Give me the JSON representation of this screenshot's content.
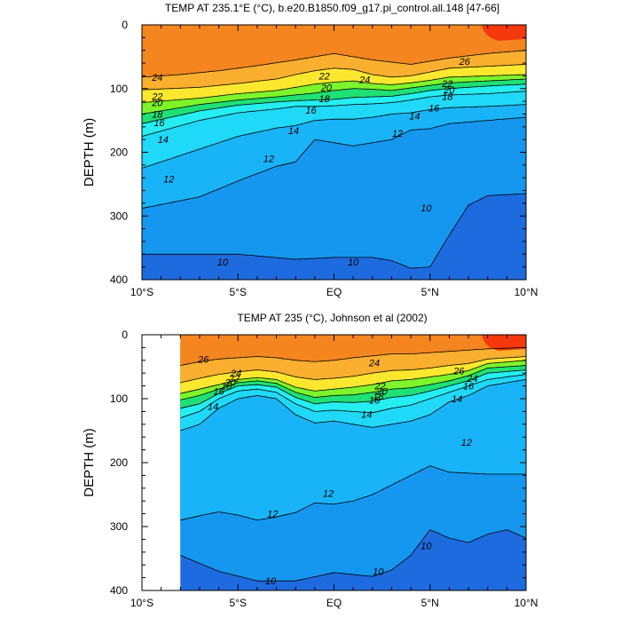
{
  "chart_data": [
    {
      "type": "contour",
      "title": "TEMP AT 235.1°E (°C), b.e20.B1850.f09_g17.pi_control.all.148 [47-66]",
      "ylabel": "DEPTH (m)",
      "xlabel": "",
      "x_ticks": [
        "10°S",
        "5°S",
        "EQ",
        "5°N",
        "10°N"
      ],
      "y_ticks": [
        "0",
        "100",
        "200",
        "300",
        "400"
      ],
      "xlim": [
        -10,
        10
      ],
      "ylim": [
        400,
        0
      ],
      "data_x_start": -10,
      "isotherms": [
        {
          "level": 10,
          "x": [
            -10,
            -5,
            -2,
            0,
            2,
            3,
            4,
            5,
            6,
            7,
            8,
            10
          ],
          "depth": [
            360,
            360,
            368,
            365,
            365,
            370,
            382,
            380,
            330,
            283,
            268,
            265
          ]
        },
        {
          "level": 12,
          "x": [
            -10,
            -7,
            -5,
            -3,
            -2,
            -1,
            0,
            1,
            2,
            3,
            4,
            5,
            6,
            8,
            10
          ],
          "depth": [
            288,
            270,
            245,
            222,
            215,
            180,
            185,
            190,
            185,
            180,
            165,
            163,
            155,
            150,
            145
          ]
        },
        {
          "level": 14,
          "x": [
            -10,
            -7,
            -5,
            -3,
            -2,
            -1,
            0,
            1,
            2,
            3,
            4,
            5,
            6,
            8,
            10
          ],
          "depth": [
            225,
            195,
            175,
            162,
            158,
            150,
            148,
            148,
            145,
            140,
            138,
            133,
            130,
            128,
            125
          ]
        },
        {
          "level": 16,
          "x": [
            -10,
            -7,
            -5,
            -3,
            -2,
            -1,
            0,
            1,
            2,
            3,
            4,
            5,
            6,
            8,
            10
          ],
          "depth": [
            175,
            150,
            138,
            132,
            128,
            128,
            127,
            125,
            124,
            122,
            118,
            113,
            110,
            108,
            104
          ]
        },
        {
          "level": 18,
          "x": [
            -10,
            -7,
            -5,
            -3,
            -2,
            -1,
            0,
            1,
            2,
            3,
            4,
            5,
            6,
            8,
            10
          ],
          "depth": [
            155,
            135,
            126,
            121,
            119,
            118,
            117,
            114,
            113,
            112,
            108,
            103,
            100,
            96,
            93
          ]
        },
        {
          "level": 20,
          "x": [
            -10,
            -7,
            -5,
            -3,
            -2,
            -1,
            0,
            1,
            2,
            3,
            4,
            5,
            6,
            8,
            10
          ],
          "depth": [
            140,
            125,
            118,
            113,
            110,
            107,
            103,
            100,
            101,
            103,
            99,
            95,
            91,
            88,
            85
          ]
        },
        {
          "level": 22,
          "x": [
            -10,
            -7,
            -5,
            -3,
            -2,
            -1,
            0,
            1,
            2,
            3,
            4,
            5,
            6,
            8,
            10
          ],
          "depth": [
            122,
            115,
            108,
            103,
            98,
            93,
            90,
            88,
            92,
            94,
            91,
            87,
            82,
            80,
            78
          ]
        },
        {
          "level": 24,
          "x": [
            -10,
            -7,
            -5,
            -3,
            -2,
            -1,
            0,
            1,
            2,
            3,
            4,
            5,
            6,
            8,
            10
          ],
          "depth": [
            102,
            98,
            92,
            85,
            78,
            72,
            68,
            70,
            78,
            82,
            80,
            74,
            68,
            65,
            62
          ]
        },
        {
          "level": 26,
          "x": [
            -10,
            -8,
            -6,
            -4,
            -2,
            0,
            2,
            4,
            6,
            8,
            10
          ],
          "depth": [
            82,
            78,
            72,
            64,
            55,
            45,
            55,
            62,
            52,
            45,
            40
          ]
        }
      ],
      "contour_labels": [
        {
          "text": "24",
          "x": -9.2,
          "depth": 82
        },
        {
          "text": "22",
          "x": -9.2,
          "depth": 112
        },
        {
          "text": "20",
          "x": -9.2,
          "depth": 122
        },
        {
          "text": "18",
          "x": -9.2,
          "depth": 140
        },
        {
          "text": "16",
          "x": -9.1,
          "depth": 153
        },
        {
          "text": "14",
          "x": -8.9,
          "depth": 180
        },
        {
          "text": "12",
          "x": -8.6,
          "depth": 242
        },
        {
          "text": "22",
          "x": -0.5,
          "depth": 80
        },
        {
          "text": "20",
          "x": -0.4,
          "depth": 98
        },
        {
          "text": "18",
          "x": -0.5,
          "depth": 116
        },
        {
          "text": "16",
          "x": -1.2,
          "depth": 134
        },
        {
          "text": "14",
          "x": -2.1,
          "depth": 166
        },
        {
          "text": "12",
          "x": -3.4,
          "depth": 210
        },
        {
          "text": "24",
          "x": 1.6,
          "depth": 86
        },
        {
          "text": "26",
          "x": 6.8,
          "depth": 57
        },
        {
          "text": "22",
          "x": 5.9,
          "depth": 92
        },
        {
          "text": "20",
          "x": 6.0,
          "depth": 102
        },
        {
          "text": "18",
          "x": 5.9,
          "depth": 112
        },
        {
          "text": "16",
          "x": 5.2,
          "depth": 130
        },
        {
          "text": "14",
          "x": 4.2,
          "depth": 143
        },
        {
          "text": "12",
          "x": 3.3,
          "depth": 170
        },
        {
          "text": "10",
          "x": 4.8,
          "depth": 287
        },
        {
          "text": "10",
          "x": -5.8,
          "depth": 372
        },
        {
          "text": "10",
          "x": 1.0,
          "depth": 372
        }
      ]
    },
    {
      "type": "contour",
      "title": "TEMP AT 235 (°C), Johnson et al (2002)",
      "ylabel": "DEPTH (m)",
      "xlabel": "",
      "x_ticks": [
        "10°S",
        "5°S",
        "EQ",
        "5°N",
        "10°N"
      ],
      "y_ticks": [
        "0",
        "100",
        "200",
        "300",
        "400"
      ],
      "xlim": [
        -10,
        10
      ],
      "ylim": [
        400,
        0
      ],
      "data_x_start": -8,
      "isotherms": [
        {
          "level": 10,
          "x": [
            -8,
            -6,
            -4,
            -2,
            0,
            2,
            3,
            4,
            5,
            6,
            7,
            8,
            9,
            10
          ],
          "depth": [
            345,
            370,
            385,
            385,
            372,
            378,
            368,
            345,
            305,
            318,
            325,
            312,
            305,
            318
          ]
        },
        {
          "level": 12,
          "x": [
            -8,
            -7,
            -6,
            -5,
            -4,
            -3,
            -2,
            -1,
            0,
            1,
            2,
            3,
            4,
            5,
            6,
            8,
            10
          ],
          "depth": [
            290,
            283,
            277,
            282,
            290,
            285,
            278,
            263,
            265,
            260,
            250,
            235,
            220,
            205,
            215,
            218,
            218
          ]
        },
        {
          "level": 14,
          "x": [
            -8,
            -7,
            -6,
            -5,
            -4,
            -3,
            -2,
            -1,
            0,
            1,
            2,
            3,
            4,
            5,
            6,
            7,
            8,
            10
          ],
          "depth": [
            150,
            140,
            115,
            100,
            95,
            100,
            125,
            138,
            135,
            140,
            145,
            140,
            135,
            125,
            105,
            95,
            80,
            70
          ]
        },
        {
          "level": 16,
          "x": [
            -8,
            -7,
            -6,
            -5,
            -4,
            -3,
            -2,
            -1,
            0,
            1,
            2,
            3,
            4,
            5,
            6,
            7,
            8,
            10
          ],
          "depth": [
            130,
            120,
            100,
            88,
            85,
            90,
            108,
            120,
            118,
            120,
            122,
            115,
            110,
            100,
            90,
            80,
            70,
            62
          ]
        },
        {
          "level": 18,
          "x": [
            -8,
            -7,
            -6,
            -5,
            -4,
            -3,
            -2,
            -1,
            0,
            1,
            2,
            3,
            4,
            5,
            6,
            7,
            8,
            10
          ],
          "depth": [
            115,
            108,
            92,
            80,
            78,
            82,
            98,
            108,
            105,
            106,
            104,
            98,
            95,
            88,
            80,
            72,
            60,
            55
          ]
        },
        {
          "level": 20,
          "x": [
            -8,
            -7,
            -6,
            -5,
            -4,
            -3,
            -2,
            -1,
            0,
            1,
            2,
            3,
            4,
            5,
            6,
            7,
            8,
            10
          ],
          "depth": [
            102,
            95,
            85,
            75,
            72,
            76,
            90,
            98,
            95,
            94,
            90,
            85,
            83,
            78,
            72,
            64,
            52,
            48
          ]
        },
        {
          "level": 22,
          "x": [
            -8,
            -7,
            -6,
            -5,
            -4,
            -3,
            -2,
            -1,
            0,
            1,
            2,
            3,
            4,
            5,
            6,
            7,
            8,
            10
          ],
          "depth": [
            92,
            85,
            78,
            70,
            67,
            70,
            82,
            88,
            85,
            82,
            78,
            72,
            70,
            66,
            62,
            56,
            45,
            40
          ]
        },
        {
          "level": 24,
          "x": [
            -8,
            -7,
            -6,
            -5,
            -4,
            -3,
            -2,
            -1,
            0,
            1,
            2,
            3,
            4,
            5,
            6,
            7,
            8,
            10
          ],
          "depth": [
            75,
            68,
            62,
            58,
            55,
            58,
            66,
            70,
            68,
            65,
            60,
            56,
            55,
            52,
            48,
            45,
            38,
            34
          ]
        },
        {
          "level": 26,
          "x": [
            -8,
            -7,
            -6,
            -5,
            -4,
            -3,
            -2,
            -1,
            0,
            1,
            2,
            3,
            4,
            5,
            6,
            7,
            8,
            10
          ],
          "depth": [
            48,
            42,
            38,
            36,
            34,
            36,
            40,
            42,
            40,
            36,
            33,
            30,
            30,
            28,
            26,
            24,
            22,
            20
          ]
        }
      ],
      "contour_labels": [
        {
          "text": "26",
          "x": -6.8,
          "depth": 38
        },
        {
          "text": "24",
          "x": -5.1,
          "depth": 60
        },
        {
          "text": "22",
          "x": -5.2,
          "depth": 68
        },
        {
          "text": "20",
          "x": -5.4,
          "depth": 74
        },
        {
          "text": "18",
          "x": -5.6,
          "depth": 80
        },
        {
          "text": "16",
          "x": -6.0,
          "depth": 88
        },
        {
          "text": "14",
          "x": -6.3,
          "depth": 112
        },
        {
          "text": "24",
          "x": 2.1,
          "depth": 44
        },
        {
          "text": "22",
          "x": 2.4,
          "depth": 80
        },
        {
          "text": "20",
          "x": 2.5,
          "depth": 88
        },
        {
          "text": "18",
          "x": 2.3,
          "depth": 96
        },
        {
          "text": "16",
          "x": 2.1,
          "depth": 102
        },
        {
          "text": "14",
          "x": 1.7,
          "depth": 124
        },
        {
          "text": "26",
          "x": 6.5,
          "depth": 56
        },
        {
          "text": "24",
          "x": 7.2,
          "depth": 68
        },
        {
          "text": "16",
          "x": 7.0,
          "depth": 80
        },
        {
          "text": "14",
          "x": 6.4,
          "depth": 100
        },
        {
          "text": "12",
          "x": 6.9,
          "depth": 168
        },
        {
          "text": "12",
          "x": -0.3,
          "depth": 248
        },
        {
          "text": "12",
          "x": -3.2,
          "depth": 280
        },
        {
          "text": "10",
          "x": 4.8,
          "depth": 330
        },
        {
          "text": "10",
          "x": 2.3,
          "depth": 370
        },
        {
          "text": "10",
          "x": -3.3,
          "depth": 385
        }
      ]
    }
  ],
  "colors": {
    "lt10": "#1e6be0",
    "c10_12": "#1597f0",
    "c12_14": "#19b4f7",
    "c14_16": "#20d8f8",
    "c16_18": "#24eef0",
    "c18_20": "#1fe074",
    "c20_22": "#7df52a",
    "c22_24": "#fbe82e",
    "c24_26": "#fbaf2f",
    "ge26": "#f5861f",
    "ge28": "#f5390c",
    "contour_line": "#000000",
    "background": "#ffffff"
  },
  "color_levels": [
    10,
    12,
    14,
    16,
    18,
    20,
    22,
    24,
    26
  ]
}
